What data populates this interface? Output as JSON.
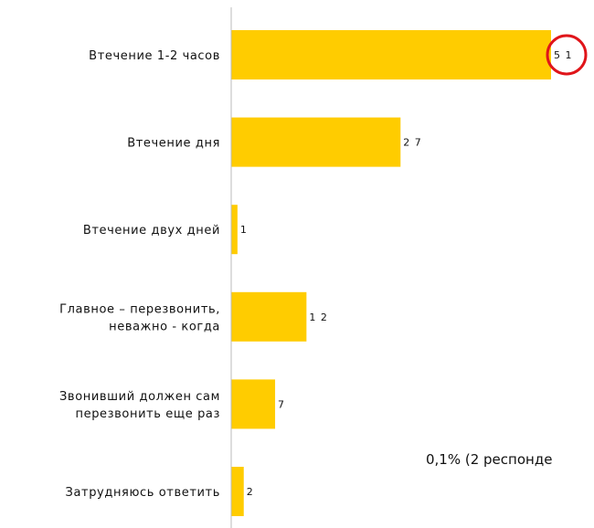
{
  "chart_data": {
    "type": "bar",
    "orientation": "horizontal",
    "categories": [
      [
        "Втечение 1-2 часов"
      ],
      [
        "Втечение дня"
      ],
      [
        "Втечение двух дней"
      ],
      [
        "Главное – перезвонить,",
        "неважно - когда"
      ],
      [
        "Звонивший должен сам",
        "перезвонить еще раз"
      ],
      [
        "Затрудняюсь ответить"
      ]
    ],
    "values": [
      51,
      27,
      1,
      12,
      7,
      2
    ],
    "highlight_index": 0,
    "xlim": [
      0,
      51
    ],
    "grid": false,
    "colors": {
      "bar": "#FFCC00",
      "axis": "#BBBBBB",
      "highlight": "#E0151A"
    }
  },
  "footnote": "0,1% (2 респонде"
}
